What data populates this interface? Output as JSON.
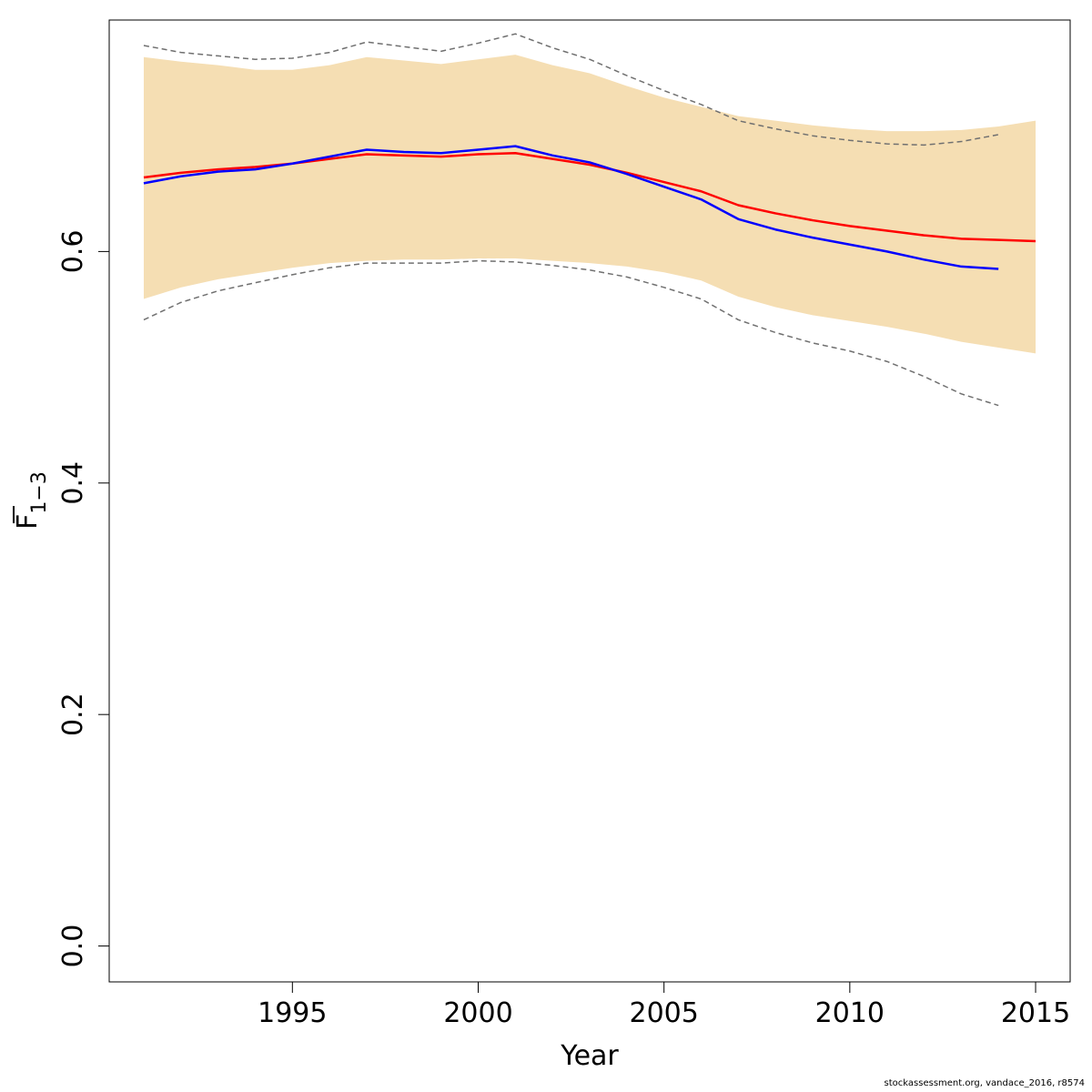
{
  "chart_data": {
    "type": "line",
    "xlabel": "Year",
    "ylabel_main": "F",
    "ylabel_sub": "1−3",
    "xlim": [
      1990.07,
      2015.93
    ],
    "ylim": [
      -0.031,
      0.8
    ],
    "x_ticks": [
      1995,
      2000,
      2005,
      2010,
      2015
    ],
    "y_ticks": [
      0.0,
      0.2,
      0.4,
      0.6
    ],
    "y_tick_labels": [
      "0.0",
      "0.2",
      "0.4",
      "0.6"
    ],
    "band": {
      "color": "#F5DEB3",
      "x": [
        1991,
        1992,
        1993,
        1994,
        1995,
        1996,
        1997,
        1998,
        1999,
        2000,
        2001,
        2002,
        2003,
        2004,
        2005,
        2006,
        2007,
        2008,
        2009,
        2010,
        2011,
        2012,
        2013,
        2014,
        2015
      ],
      "upper": [
        0.768,
        0.764,
        0.761,
        0.757,
        0.757,
        0.761,
        0.768,
        0.765,
        0.762,
        0.766,
        0.77,
        0.761,
        0.754,
        0.743,
        0.733,
        0.725,
        0.717,
        0.713,
        0.709,
        0.706,
        0.704,
        0.704,
        0.705,
        0.708,
        0.713
      ],
      "lower": [
        0.559,
        0.569,
        0.576,
        0.581,
        0.586,
        0.59,
        0.592,
        0.593,
        0.593,
        0.594,
        0.594,
        0.592,
        0.59,
        0.587,
        0.582,
        0.575,
        0.561,
        0.552,
        0.545,
        0.54,
        0.535,
        0.529,
        0.522,
        0.517,
        0.512
      ]
    },
    "series": [
      {
        "color": "#ff0000",
        "style": "solid",
        "x": [
          1991,
          1992,
          1993,
          1994,
          1995,
          1996,
          1997,
          1998,
          1999,
          2000,
          2001,
          2002,
          2003,
          2004,
          2005,
          2006,
          2007,
          2008,
          2009,
          2010,
          2011,
          2012,
          2013,
          2014,
          2015
        ],
        "y": [
          0.664,
          0.668,
          0.671,
          0.673,
          0.676,
          0.68,
          0.684,
          0.683,
          0.682,
          0.684,
          0.685,
          0.68,
          0.675,
          0.668,
          0.66,
          0.652,
          0.64,
          0.633,
          0.627,
          0.622,
          0.618,
          0.614,
          0.611,
          0.61,
          0.609
        ]
      },
      {
        "color": "#0000ff",
        "style": "solid",
        "x": [
          1991,
          1992,
          1993,
          1994,
          1995,
          1996,
          1997,
          1998,
          1999,
          2000,
          2001,
          2002,
          2003,
          2004,
          2005,
          2006,
          2007,
          2008,
          2009,
          2010,
          2011,
          2012,
          2013,
          2014
        ],
        "y": [
          0.659,
          0.665,
          0.669,
          0.671,
          0.676,
          0.682,
          0.688,
          0.686,
          0.685,
          0.688,
          0.691,
          0.683,
          0.677,
          0.667,
          0.656,
          0.645,
          0.628,
          0.619,
          0.612,
          0.606,
          0.6,
          0.593,
          0.587,
          0.585
        ]
      },
      {
        "color": "#707070",
        "style": "dashed",
        "x": [
          1991,
          1992,
          1993,
          1994,
          1995,
          1996,
          1997,
          1998,
          1999,
          2000,
          2001,
          2002,
          2003,
          2004,
          2005,
          2006,
          2007,
          2008,
          2009,
          2010,
          2011,
          2012,
          2013,
          2014
        ],
        "y": [
          0.778,
          0.772,
          0.769,
          0.766,
          0.767,
          0.772,
          0.781,
          0.777,
          0.773,
          0.78,
          0.788,
          0.776,
          0.766,
          0.752,
          0.739,
          0.727,
          0.713,
          0.706,
          0.7,
          0.696,
          0.693,
          0.692,
          0.695,
          0.701
        ]
      },
      {
        "color": "#707070",
        "style": "dashed",
        "x": [
          1991,
          1992,
          1993,
          1994,
          1995,
          1996,
          1997,
          1998,
          1999,
          2000,
          2001,
          2002,
          2003,
          2004,
          2005,
          2006,
          2007,
          2008,
          2009,
          2010,
          2011,
          2012,
          2013,
          2014
        ],
        "y": [
          0.541,
          0.556,
          0.566,
          0.573,
          0.58,
          0.586,
          0.59,
          0.59,
          0.59,
          0.592,
          0.591,
          0.588,
          0.584,
          0.578,
          0.569,
          0.559,
          0.541,
          0.53,
          0.521,
          0.514,
          0.505,
          0.492,
          0.477,
          0.467
        ]
      }
    ]
  },
  "footer": {
    "text": "stockassessment.org, vandace_2016, r8574"
  }
}
